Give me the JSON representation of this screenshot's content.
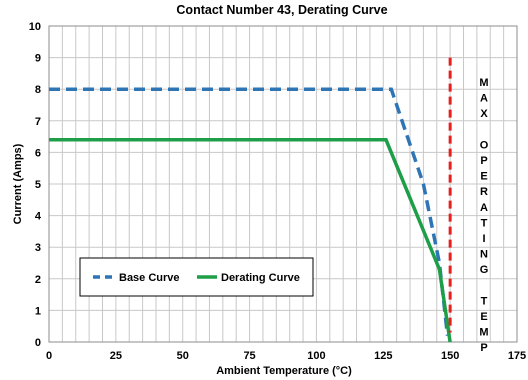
{
  "chart_data": {
    "type": "line",
    "title": "Contact Number 43, Derating Curve",
    "xlabel": "Ambient Temperature (°C)",
    "ylabel": "Current (Amps)",
    "xlim": [
      0,
      175
    ],
    "ylim": [
      0,
      10
    ],
    "xticks": [
      0,
      25,
      50,
      75,
      100,
      125,
      150,
      175
    ],
    "yticks": [
      0,
      1,
      2,
      3,
      4,
      5,
      6,
      7,
      8,
      9,
      10
    ],
    "x_minor_step": 5,
    "grid": true,
    "legend_position": "lower-left",
    "series": [
      {
        "name": "Base Curve",
        "style": "dashed",
        "color": "#2E75B6",
        "points": [
          [
            0,
            8.0
          ],
          [
            126,
            8.0
          ],
          [
            128,
            8.0
          ],
          [
            140,
            5.0
          ],
          [
            146,
            2.5
          ],
          [
            149,
            0.2
          ]
        ]
      },
      {
        "name": "Derating Curve",
        "style": "solid",
        "color": "#1E9E48",
        "points": [
          [
            0,
            6.4
          ],
          [
            126,
            6.4
          ],
          [
            146,
            2.3
          ],
          [
            150,
            0.0
          ]
        ]
      }
    ],
    "annotations": [
      {
        "type": "vertical-line",
        "x": 150,
        "style": "dashed",
        "color": "#E8201C",
        "y_range": [
          0.3,
          9.0
        ]
      },
      {
        "type": "vertical-text",
        "letters": [
          "M",
          "A",
          "X",
          "",
          "O",
          "P",
          "E",
          "R",
          "A",
          "T",
          "I",
          "N",
          "G",
          "",
          "T",
          "E",
          "M",
          "P"
        ]
      }
    ]
  }
}
